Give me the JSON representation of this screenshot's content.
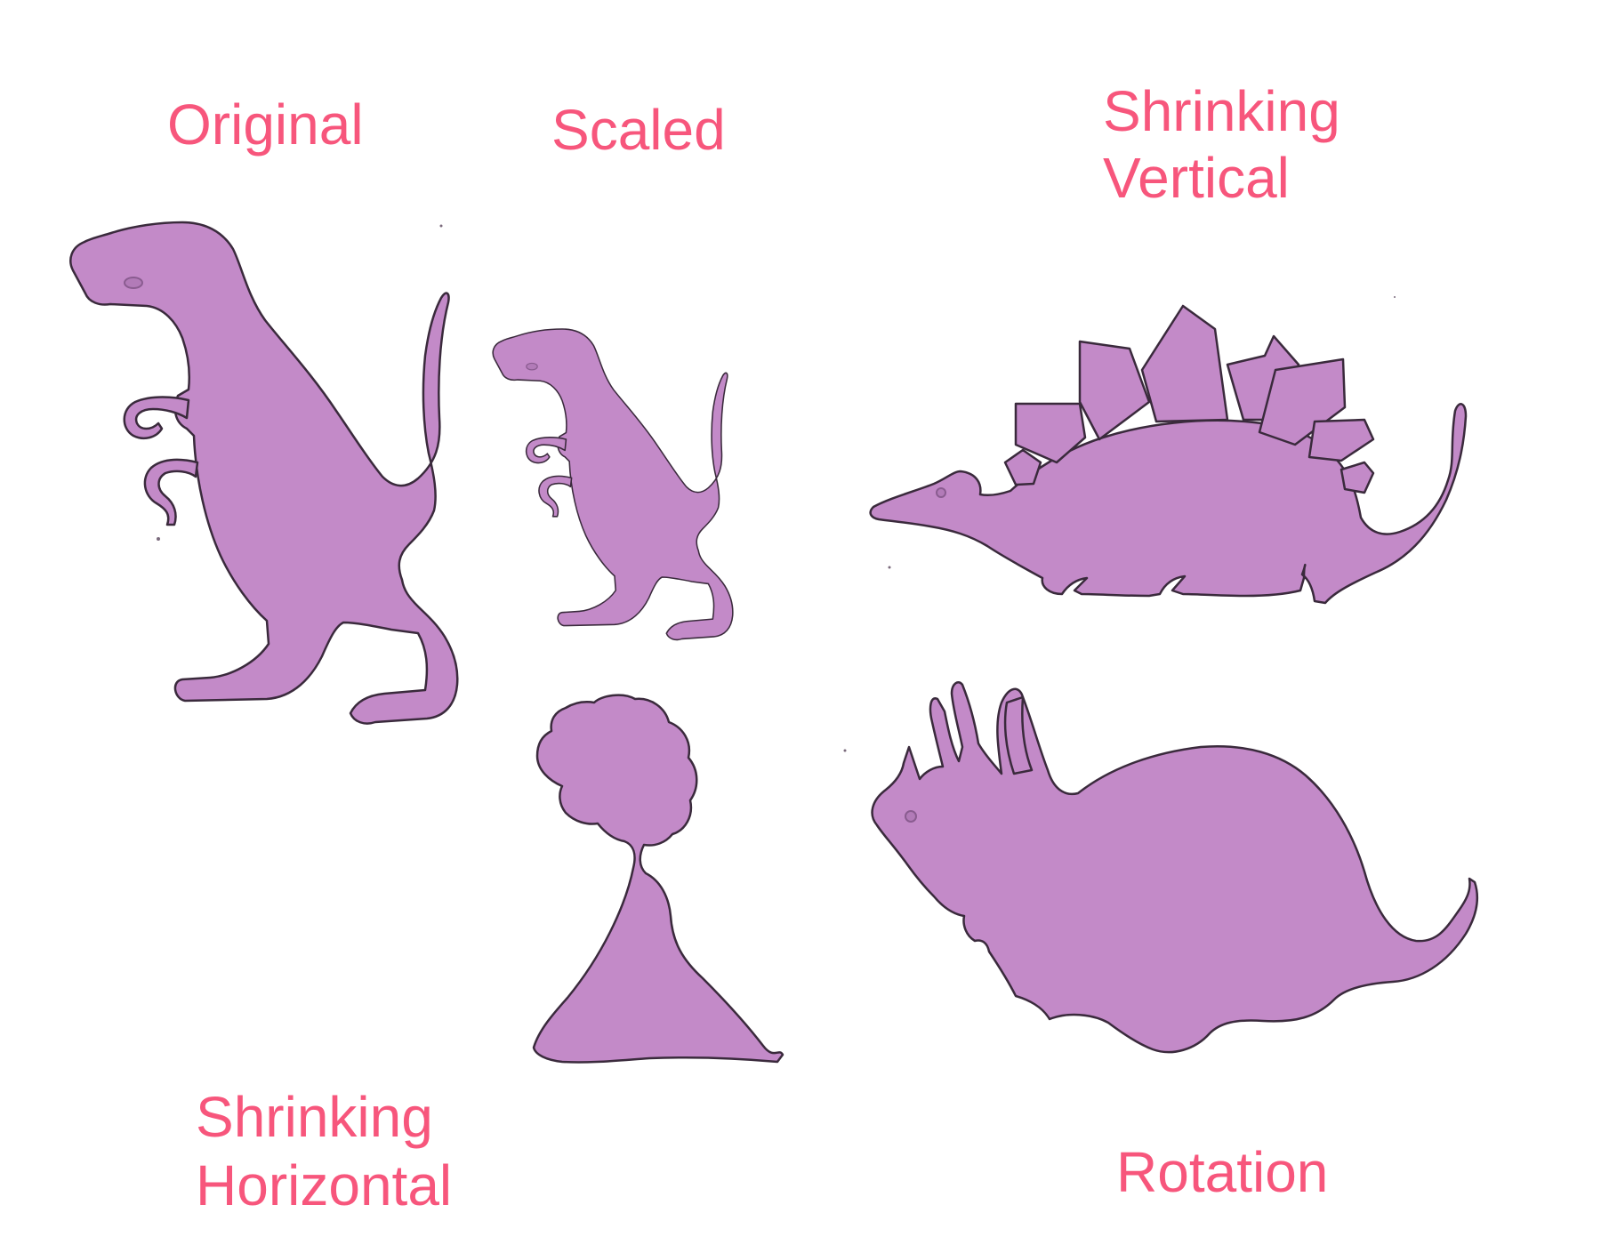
{
  "colors": {
    "label": "#f7567c",
    "shape_fill": "#c38ac8",
    "shape_edge": "#3a2a3c",
    "background": "#ffffff"
  },
  "labels": {
    "original": "Original",
    "scaled": "Scaled",
    "shrinking_vertical_line1": "Shrinking",
    "shrinking_vertical_line2": "Vertical",
    "shrinking_horizontal_line1": "Shrinking",
    "shrinking_horizontal_line2": "Horizontal",
    "rotation": "Rotation"
  }
}
